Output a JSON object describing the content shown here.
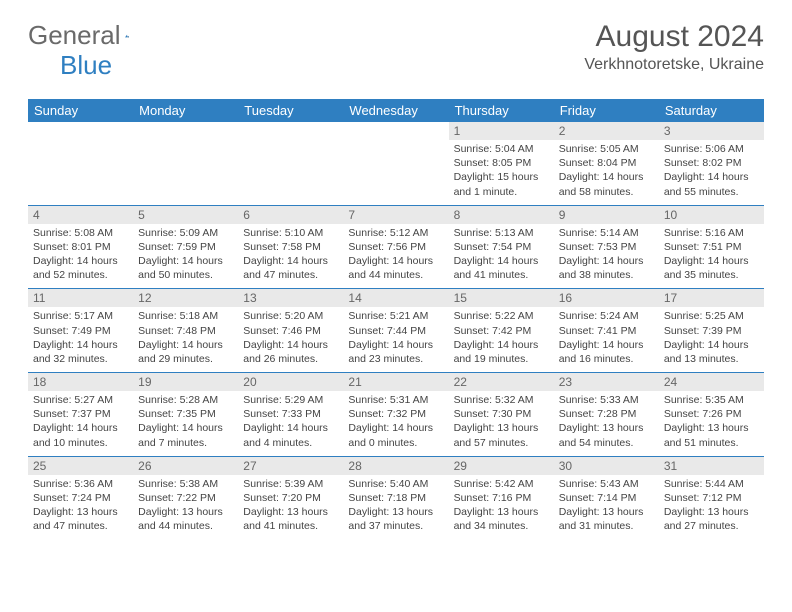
{
  "colors": {
    "brand_blue": "#2f7fc1",
    "grey_bar": "#e9e9e9",
    "text": "#444"
  },
  "logo": {
    "word1": "General",
    "word2": "Blue"
  },
  "title": "August 2024",
  "location": "Verkhnotoretske, Ukraine",
  "weekdays": [
    "Sunday",
    "Monday",
    "Tuesday",
    "Wednesday",
    "Thursday",
    "Friday",
    "Saturday"
  ],
  "weeks": [
    [
      {
        "day": "",
        "sunrise": "",
        "sunset": "",
        "daylight": ""
      },
      {
        "day": "",
        "sunrise": "",
        "sunset": "",
        "daylight": ""
      },
      {
        "day": "",
        "sunrise": "",
        "sunset": "",
        "daylight": ""
      },
      {
        "day": "",
        "sunrise": "",
        "sunset": "",
        "daylight": ""
      },
      {
        "day": "1",
        "sunrise": "Sunrise: 5:04 AM",
        "sunset": "Sunset: 8:05 PM",
        "daylight": "Daylight: 15 hours and 1 minute."
      },
      {
        "day": "2",
        "sunrise": "Sunrise: 5:05 AM",
        "sunset": "Sunset: 8:04 PM",
        "daylight": "Daylight: 14 hours and 58 minutes."
      },
      {
        "day": "3",
        "sunrise": "Sunrise: 5:06 AM",
        "sunset": "Sunset: 8:02 PM",
        "daylight": "Daylight: 14 hours and 55 minutes."
      }
    ],
    [
      {
        "day": "4",
        "sunrise": "Sunrise: 5:08 AM",
        "sunset": "Sunset: 8:01 PM",
        "daylight": "Daylight: 14 hours and 52 minutes."
      },
      {
        "day": "5",
        "sunrise": "Sunrise: 5:09 AM",
        "sunset": "Sunset: 7:59 PM",
        "daylight": "Daylight: 14 hours and 50 minutes."
      },
      {
        "day": "6",
        "sunrise": "Sunrise: 5:10 AM",
        "sunset": "Sunset: 7:58 PM",
        "daylight": "Daylight: 14 hours and 47 minutes."
      },
      {
        "day": "7",
        "sunrise": "Sunrise: 5:12 AM",
        "sunset": "Sunset: 7:56 PM",
        "daylight": "Daylight: 14 hours and 44 minutes."
      },
      {
        "day": "8",
        "sunrise": "Sunrise: 5:13 AM",
        "sunset": "Sunset: 7:54 PM",
        "daylight": "Daylight: 14 hours and 41 minutes."
      },
      {
        "day": "9",
        "sunrise": "Sunrise: 5:14 AM",
        "sunset": "Sunset: 7:53 PM",
        "daylight": "Daylight: 14 hours and 38 minutes."
      },
      {
        "day": "10",
        "sunrise": "Sunrise: 5:16 AM",
        "sunset": "Sunset: 7:51 PM",
        "daylight": "Daylight: 14 hours and 35 minutes."
      }
    ],
    [
      {
        "day": "11",
        "sunrise": "Sunrise: 5:17 AM",
        "sunset": "Sunset: 7:49 PM",
        "daylight": "Daylight: 14 hours and 32 minutes."
      },
      {
        "day": "12",
        "sunrise": "Sunrise: 5:18 AM",
        "sunset": "Sunset: 7:48 PM",
        "daylight": "Daylight: 14 hours and 29 minutes."
      },
      {
        "day": "13",
        "sunrise": "Sunrise: 5:20 AM",
        "sunset": "Sunset: 7:46 PM",
        "daylight": "Daylight: 14 hours and 26 minutes."
      },
      {
        "day": "14",
        "sunrise": "Sunrise: 5:21 AM",
        "sunset": "Sunset: 7:44 PM",
        "daylight": "Daylight: 14 hours and 23 minutes."
      },
      {
        "day": "15",
        "sunrise": "Sunrise: 5:22 AM",
        "sunset": "Sunset: 7:42 PM",
        "daylight": "Daylight: 14 hours and 19 minutes."
      },
      {
        "day": "16",
        "sunrise": "Sunrise: 5:24 AM",
        "sunset": "Sunset: 7:41 PM",
        "daylight": "Daylight: 14 hours and 16 minutes."
      },
      {
        "day": "17",
        "sunrise": "Sunrise: 5:25 AM",
        "sunset": "Sunset: 7:39 PM",
        "daylight": "Daylight: 14 hours and 13 minutes."
      }
    ],
    [
      {
        "day": "18",
        "sunrise": "Sunrise: 5:27 AM",
        "sunset": "Sunset: 7:37 PM",
        "daylight": "Daylight: 14 hours and 10 minutes."
      },
      {
        "day": "19",
        "sunrise": "Sunrise: 5:28 AM",
        "sunset": "Sunset: 7:35 PM",
        "daylight": "Daylight: 14 hours and 7 minutes."
      },
      {
        "day": "20",
        "sunrise": "Sunrise: 5:29 AM",
        "sunset": "Sunset: 7:33 PM",
        "daylight": "Daylight: 14 hours and 4 minutes."
      },
      {
        "day": "21",
        "sunrise": "Sunrise: 5:31 AM",
        "sunset": "Sunset: 7:32 PM",
        "daylight": "Daylight: 14 hours and 0 minutes."
      },
      {
        "day": "22",
        "sunrise": "Sunrise: 5:32 AM",
        "sunset": "Sunset: 7:30 PM",
        "daylight": "Daylight: 13 hours and 57 minutes."
      },
      {
        "day": "23",
        "sunrise": "Sunrise: 5:33 AM",
        "sunset": "Sunset: 7:28 PM",
        "daylight": "Daylight: 13 hours and 54 minutes."
      },
      {
        "day": "24",
        "sunrise": "Sunrise: 5:35 AM",
        "sunset": "Sunset: 7:26 PM",
        "daylight": "Daylight: 13 hours and 51 minutes."
      }
    ],
    [
      {
        "day": "25",
        "sunrise": "Sunrise: 5:36 AM",
        "sunset": "Sunset: 7:24 PM",
        "daylight": "Daylight: 13 hours and 47 minutes."
      },
      {
        "day": "26",
        "sunrise": "Sunrise: 5:38 AM",
        "sunset": "Sunset: 7:22 PM",
        "daylight": "Daylight: 13 hours and 44 minutes."
      },
      {
        "day": "27",
        "sunrise": "Sunrise: 5:39 AM",
        "sunset": "Sunset: 7:20 PM",
        "daylight": "Daylight: 13 hours and 41 minutes."
      },
      {
        "day": "28",
        "sunrise": "Sunrise: 5:40 AM",
        "sunset": "Sunset: 7:18 PM",
        "daylight": "Daylight: 13 hours and 37 minutes."
      },
      {
        "day": "29",
        "sunrise": "Sunrise: 5:42 AM",
        "sunset": "Sunset: 7:16 PM",
        "daylight": "Daylight: 13 hours and 34 minutes."
      },
      {
        "day": "30",
        "sunrise": "Sunrise: 5:43 AM",
        "sunset": "Sunset: 7:14 PM",
        "daylight": "Daylight: 13 hours and 31 minutes."
      },
      {
        "day": "31",
        "sunrise": "Sunrise: 5:44 AM",
        "sunset": "Sunset: 7:12 PM",
        "daylight": "Daylight: 13 hours and 27 minutes."
      }
    ]
  ]
}
